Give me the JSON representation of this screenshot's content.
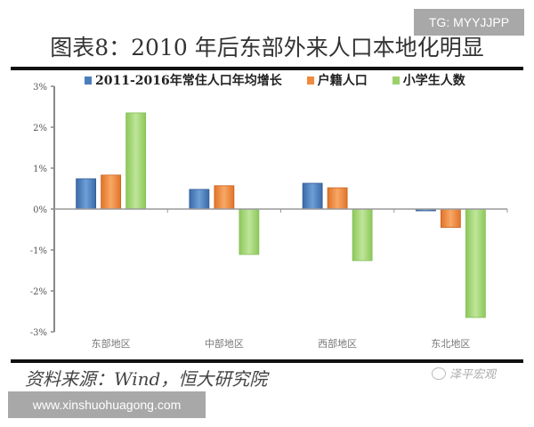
{
  "watermark_top": "TG: MYYJJPP",
  "watermark_bottom": "www.xinshuohuagong.com",
  "source": "资料来源：Wind，恒大研究院",
  "wechat_label": "泽平宏观",
  "chart_data": {
    "type": "bar",
    "title": "图表8：2010 年后东部外来人口本地化明显",
    "xlabel": "",
    "ylabel": "",
    "categories": [
      "东部地区",
      "中部地区",
      "西部地区",
      "东北地区"
    ],
    "series": [
      {
        "name": "2011-2016年常住人口年均增长",
        "color": "#4a7ebb",
        "values": [
          0.74,
          0.48,
          0.63,
          -0.03
        ]
      },
      {
        "name": "户籍人口",
        "color": "#f08a3c",
        "values": [
          0.83,
          0.57,
          0.52,
          -0.45
        ]
      },
      {
        "name": "小学生人数",
        "color": "#9bd16b",
        "values": [
          2.35,
          -1.11,
          -1.26,
          -2.65
        ]
      }
    ],
    "yticks": [
      "3%",
      "2%",
      "1%",
      "0%",
      "-1%",
      "-2%",
      "-3%"
    ],
    "ylim": [
      -3,
      3
    ],
    "unit": "%",
    "grid": false,
    "legend_position": "top"
  }
}
